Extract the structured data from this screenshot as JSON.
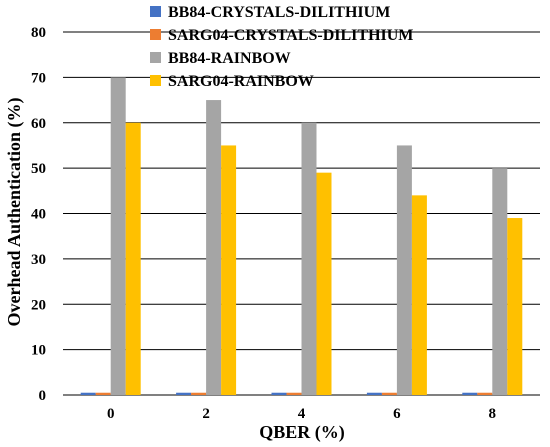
{
  "chart_data": {
    "type": "bar",
    "title": "",
    "xlabel": "QBER (%)",
    "ylabel": "Overhead Authentication (%)",
    "categories": [
      "0",
      "2",
      "4",
      "6",
      "8"
    ],
    "ylim": [
      0,
      80
    ],
    "yticks": [
      "0",
      "10",
      "20",
      "30",
      "40",
      "50",
      "60",
      "70",
      "80"
    ],
    "grid": true,
    "legend_position": "top",
    "series": [
      {
        "name": "BB84-CRYSTALS-DILITHIUM",
        "color": "#4472C4",
        "values": [
          0.5,
          0.5,
          0.5,
          0.5,
          0.5
        ]
      },
      {
        "name": "SARG04-CRYSTALS-DILITHIUM",
        "color": "#ED7D31",
        "values": [
          0.5,
          0.5,
          0.5,
          0.5,
          0.5
        ]
      },
      {
        "name": "BB84-RAINBOW",
        "color": "#A5A5A5",
        "values": [
          70,
          65,
          60,
          55,
          50
        ]
      },
      {
        "name": "SARG04-RAINBOW",
        "color": "#FFC000",
        "values": [
          60,
          55,
          49,
          44,
          39
        ]
      }
    ]
  }
}
